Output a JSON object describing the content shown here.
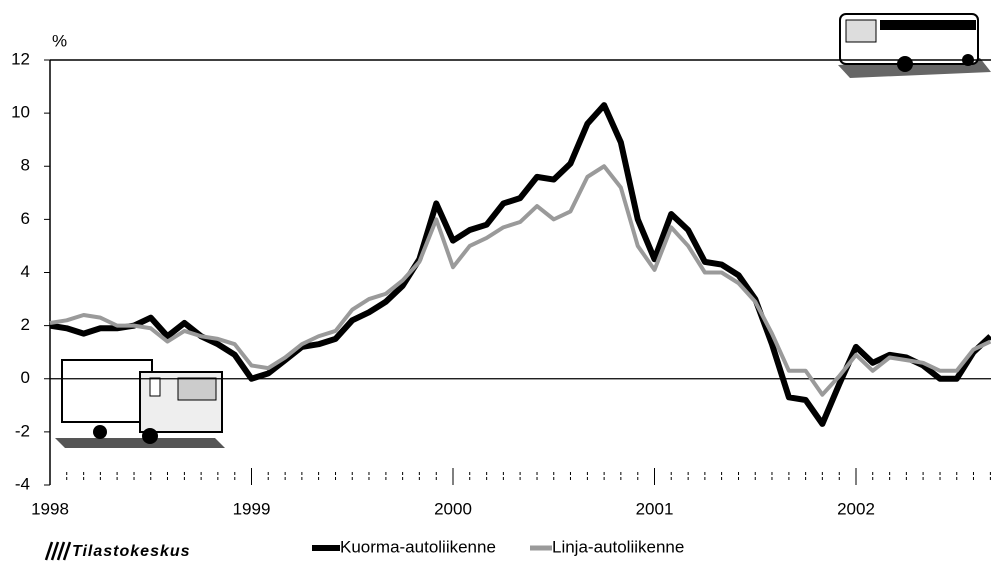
{
  "chart_data": {
    "type": "line",
    "y_axis_label": "%",
    "x": [
      1998,
      1998.083,
      1998.167,
      1998.25,
      1998.333,
      1998.417,
      1998.5,
      1998.583,
      1998.667,
      1998.75,
      1998.833,
      1998.917,
      1999,
      1999.083,
      1999.167,
      1999.25,
      1999.333,
      1999.417,
      1999.5,
      1999.583,
      1999.667,
      1999.75,
      1999.833,
      1999.917,
      2000,
      2000.083,
      2000.167,
      2000.25,
      2000.333,
      2000.417,
      2000.5,
      2000.583,
      2000.667,
      2000.75,
      2000.833,
      2000.917,
      2001,
      2001.083,
      2001.167,
      2001.25,
      2001.333,
      2001.417,
      2001.5,
      2001.583,
      2001.667,
      2001.75,
      2001.833,
      2001.917,
      2002,
      2002.083,
      2002.167,
      2002.25,
      2002.333,
      2002.417,
      2002.5,
      2002.583,
      2002.667
    ],
    "series": [
      {
        "name": "Kuorma-autoliikenne",
        "color": "#000000",
        "values": [
          2.0,
          1.9,
          1.7,
          1.9,
          1.9,
          2.0,
          2.3,
          1.6,
          2.1,
          1.6,
          1.3,
          0.9,
          0.0,
          0.2,
          0.7,
          1.2,
          1.3,
          1.5,
          2.2,
          2.5,
          2.9,
          3.5,
          4.5,
          6.6,
          5.2,
          5.6,
          5.8,
          6.6,
          6.8,
          7.6,
          7.5,
          8.1,
          9.6,
          10.3,
          8.9,
          6.0,
          4.5,
          6.2,
          5.6,
          4.4,
          4.3,
          3.9,
          3.0,
          1.3,
          -0.7,
          -0.8,
          -1.7,
          -0.2,
          1.2,
          0.6,
          0.9,
          0.8,
          0.5,
          0.0,
          0.0,
          1.0,
          1.6
        ]
      },
      {
        "name": "Linja-autoliikenne",
        "color": "#9a9a9a",
        "values": [
          2.1,
          2.2,
          2.4,
          2.3,
          2.0,
          2.0,
          1.9,
          1.4,
          1.8,
          1.6,
          1.5,
          1.3,
          0.5,
          0.4,
          0.8,
          1.3,
          1.6,
          1.8,
          2.6,
          3.0,
          3.2,
          3.7,
          4.4,
          6.0,
          4.2,
          5.0,
          5.3,
          5.7,
          5.9,
          6.5,
          6.0,
          6.3,
          7.6,
          8.0,
          7.2,
          5.0,
          4.1,
          5.7,
          5.0,
          4.0,
          4.0,
          3.6,
          2.9,
          1.7,
          0.3,
          0.3,
          -0.6,
          0.1,
          0.9,
          0.3,
          0.8,
          0.7,
          0.6,
          0.3,
          0.3,
          1.1,
          1.4
        ]
      }
    ],
    "xlim": [
      1998,
      2002.67
    ],
    "xticks": [
      1998,
      1999,
      2000,
      2001,
      2002
    ],
    "ylim": [
      -4,
      12
    ],
    "yticks": [
      -4,
      -2,
      0,
      2,
      4,
      6,
      8,
      10,
      12
    ],
    "logo": "Tilastokeskus"
  }
}
